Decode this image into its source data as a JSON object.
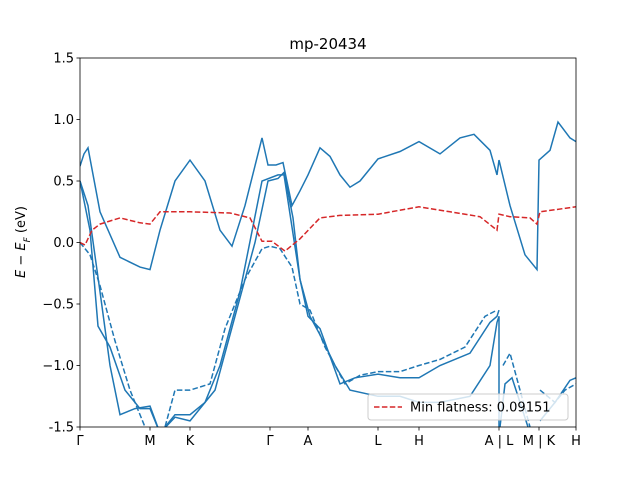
{
  "chart_data": {
    "type": "line",
    "title": "mp-20434",
    "y_label": {
      "main": "E − E",
      "sub": "F",
      "rest": " (eV)"
    },
    "xlim": [
      0,
      4.96
    ],
    "ylim": [
      -1.5,
      1.5
    ],
    "yticks": [
      -1.5,
      {
        "value": -1.0,
        "label": "−1.0"
      },
      {
        "value": -0.5,
        "label": "−0.5"
      },
      {
        "value": 0,
        "label": "0.0"
      },
      0.5,
      {
        "value": 1,
        "label": "1.0"
      },
      1.5
    ],
    "xticks": [
      {
        "value": 0,
        "label": "Γ"
      },
      {
        "value": 0.7,
        "label": "M"
      },
      {
        "value": 1.1,
        "label": "K"
      },
      {
        "value": 1.9,
        "label": "Γ"
      },
      {
        "value": 2.28,
        "label": "A"
      },
      {
        "value": 2.98,
        "label": "L"
      },
      {
        "value": 3.39,
        "label": "H"
      },
      {
        "value": 4.19,
        "label": "A | L"
      },
      {
        "value": 4.59,
        "label": "M | K"
      },
      {
        "value": 4.96,
        "label": "H"
      }
    ],
    "legend": "lower right",
    "series": [
      {
        "color": "#1f77b4",
        "linestyle": "solid",
        "x": [
          0,
          0.04,
          0.08,
          0.2,
          0.4,
          0.6,
          0.7,
          0.8,
          0.95,
          1.1,
          1.25,
          1.4,
          1.52,
          1.65,
          1.82,
          1.88,
          1.96,
          2.03,
          2.12,
          2.2,
          2.28,
          2.4,
          2.5,
          2.6,
          2.7,
          2.8,
          2.98,
          3.2,
          3.39,
          3.6,
          3.8,
          3.94,
          4.1,
          4.17,
          4.19,
          4.3,
          4.45,
          4.57,
          4.59,
          4.7,
          4.78,
          4.9,
          4.96
        ],
        "values": [
          0.62,
          0.72,
          0.77,
          0.25,
          -0.12,
          -0.2,
          -0.22,
          0.1,
          0.5,
          0.67,
          0.5,
          0.1,
          -0.03,
          0.3,
          0.85,
          0.63,
          0.63,
          0.65,
          0.3,
          0.42,
          0.55,
          0.77,
          0.7,
          0.55,
          0.45,
          0.5,
          0.68,
          0.74,
          0.82,
          0.72,
          0.85,
          0.88,
          0.75,
          0.55,
          0.67,
          0.3,
          -0.1,
          -0.22,
          0.67,
          0.75,
          0.98,
          0.85,
          0.82
        ]
      },
      {
        "color": "#1f77b4",
        "linestyle": "solid",
        "x": [
          0,
          0.08,
          0.2,
          0.3,
          0.4,
          0.55,
          0.7,
          0.8,
          0.95,
          1.1,
          1.35,
          1.55,
          1.75,
          1.88,
          1.98,
          2.04,
          2.13,
          2.2,
          2.3,
          2.4,
          2.55,
          2.7,
          2.98,
          3.2,
          3.39,
          3.6,
          3.9,
          4.1,
          4.17,
          4.19,
          4.19
        ],
        "values": [
          0.5,
          0.3,
          -0.4,
          -1.0,
          -1.4,
          -1.35,
          -1.33,
          -1.55,
          -1.42,
          -1.45,
          -1.2,
          -0.6,
          0.0,
          0.5,
          0.52,
          0.57,
          0.2,
          -0.3,
          -0.6,
          -0.75,
          -1.0,
          -1.2,
          -1.25,
          -1.25,
          -1.3,
          -1.3,
          -1.25,
          -1.0,
          -0.65,
          -0.6,
          -1.5
        ]
      },
      {
        "color": "#1f77b4",
        "linestyle": "solid",
        "x": [
          0,
          0.1,
          0.18,
          0.3,
          0.45,
          0.6,
          0.7,
          0.8,
          0.95,
          1.1,
          1.25,
          1.4,
          1.6,
          1.82,
          1.98,
          2.04,
          2.2,
          2.28,
          2.4,
          2.6,
          2.75,
          2.98,
          3.2,
          3.39,
          3.6,
          3.9,
          4.1,
          4.17,
          4.19,
          null,
          4.2,
          4.25,
          4.32,
          4.4,
          4.48,
          null,
          4.6,
          4.75,
          4.9,
          4.96
        ],
        "values": [
          0.5,
          0.1,
          -0.68,
          -0.85,
          -1.2,
          -1.35,
          -1.35,
          -1.55,
          -1.4,
          -1.4,
          -1.3,
          -1.0,
          -0.4,
          0.5,
          0.55,
          0.55,
          -0.3,
          -0.6,
          -0.7,
          -1.15,
          -1.1,
          -1.07,
          -1.1,
          -1.1,
          -1.0,
          -0.9,
          -0.65,
          -0.6,
          -0.55,
          null,
          -1.5,
          -1.15,
          -1.1,
          -1.3,
          -1.5,
          null,
          -1.45,
          -1.3,
          -1.12,
          -1.1
        ]
      },
      {
        "color": "#1f77b4",
        "linestyle": "dashed",
        "x": [
          0,
          0.1,
          0.2,
          0.35,
          0.5,
          0.65,
          0.75,
          0.85,
          0.95,
          1.1,
          1.3,
          1.45,
          1.65,
          1.82,
          1.9,
          2.0,
          2.12,
          2.2,
          2.3,
          2.45,
          2.65,
          2.8,
          2.98,
          3.2,
          3.39,
          3.6,
          3.85,
          4.05,
          4.17,
          null,
          4.23,
          4.3,
          4.4,
          4.5,
          null,
          4.6,
          4.75,
          4.85,
          4.96
        ],
        "values": [
          0.0,
          -0.1,
          -0.35,
          -0.8,
          -1.2,
          -1.5,
          -1.6,
          -1.5,
          -1.2,
          -1.2,
          -1.15,
          -0.7,
          -0.3,
          -0.05,
          -0.03,
          -0.05,
          -0.2,
          -0.5,
          -0.55,
          -0.85,
          -1.15,
          -1.08,
          -1.05,
          -1.05,
          -1.0,
          -0.95,
          -0.85,
          -0.6,
          -0.55,
          null,
          -1.0,
          -0.9,
          -1.2,
          -1.5,
          null,
          -1.2,
          -1.3,
          -1.2,
          -1.15
        ]
      },
      {
        "name": "Min flatness: 0.09151",
        "color": "#d62728",
        "linestyle": "dashed",
        "x": [
          0,
          0.05,
          0.12,
          0.2,
          0.4,
          0.6,
          0.7,
          0.8,
          1.1,
          1.5,
          1.7,
          1.82,
          1.92,
          2.05,
          2.2,
          2.4,
          2.6,
          2.98,
          3.39,
          3.7,
          4.0,
          4.17,
          4.19,
          4.3,
          4.5,
          4.57,
          4.6,
          4.96
        ],
        "values": [
          0.0,
          -0.02,
          0.1,
          0.15,
          0.2,
          0.16,
          0.15,
          0.25,
          0.25,
          0.24,
          0.2,
          0.01,
          0.01,
          -0.07,
          0.03,
          0.2,
          0.22,
          0.23,
          0.29,
          0.25,
          0.21,
          0.1,
          0.23,
          0.21,
          0.2,
          0.15,
          0.25,
          0.29
        ]
      }
    ]
  }
}
